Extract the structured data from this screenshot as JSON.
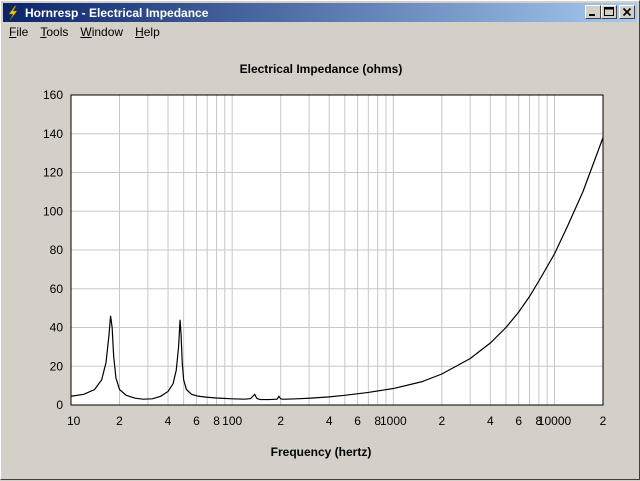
{
  "window": {
    "title": "Hornresp - Electrical Impedance",
    "icon": "lightning-bolt-icon",
    "controls": [
      "minimize-icon",
      "maximize-icon",
      "close-icon"
    ]
  },
  "menu": {
    "items": [
      {
        "hot": "F",
        "rest": "ile"
      },
      {
        "hot": "T",
        "rest": "ools"
      },
      {
        "hot": "W",
        "rest": "indow"
      },
      {
        "hot": "H",
        "rest": "elp"
      }
    ]
  },
  "chart_data": {
    "type": "line",
    "title": "Electrical Impedance (ohms)",
    "xlabel": "Frequency (hertz)",
    "ylabel": "",
    "xscale": "log",
    "xlim": [
      10,
      20000
    ],
    "ylim": [
      0,
      160
    ],
    "grid": true,
    "yticks": [
      0,
      20,
      40,
      60,
      80,
      100,
      120,
      140,
      160
    ],
    "xtick_labels": [
      {
        "value": 10,
        "label": "10"
      },
      {
        "value": 20,
        "label": "2"
      },
      {
        "value": 40,
        "label": "4"
      },
      {
        "value": 60,
        "label": "6"
      },
      {
        "value": 80,
        "label": "8"
      },
      {
        "value": 100,
        "label": "100"
      },
      {
        "value": 200,
        "label": "2"
      },
      {
        "value": 400,
        "label": "4"
      },
      {
        "value": 600,
        "label": "6"
      },
      {
        "value": 800,
        "label": "8"
      },
      {
        "value": 1000,
        "label": "1000"
      },
      {
        "value": 2000,
        "label": "2"
      },
      {
        "value": 4000,
        "label": "4"
      },
      {
        "value": 6000,
        "label": "6"
      },
      {
        "value": 8000,
        "label": "8"
      },
      {
        "value": 10000,
        "label": "10000"
      },
      {
        "value": 20000,
        "label": "2"
      }
    ],
    "series": [
      {
        "color": "#000000",
        "x": [
          10,
          12,
          14,
          15.5,
          16.5,
          17.2,
          17.6,
          18.0,
          18.4,
          19.0,
          20,
          22,
          25,
          28,
          32,
          36,
          40,
          43,
          45,
          46.5,
          47.5,
          48.2,
          49,
          50,
          52,
          56,
          62,
          70,
          80,
          100,
          120,
          130,
          138,
          142,
          146,
          150,
          170,
          190,
          195,
          200,
          205,
          215,
          250,
          300,
          400,
          500,
          700,
          1000,
          1500,
          2000,
          3000,
          4000,
          5000,
          6000,
          7000,
          8000,
          10000,
          12000,
          15000,
          20000
        ],
        "y": [
          4.5,
          5.5,
          8,
          13,
          22,
          36,
          46,
          40,
          25,
          14,
          8,
          5,
          3.5,
          3,
          3.2,
          4.5,
          7,
          11,
          18,
          30,
          44,
          36,
          22,
          13,
          8,
          5.5,
          4.5,
          4,
          3.6,
          3.2,
          3.0,
          3.3,
          5.5,
          3.5,
          3.0,
          2.8,
          2.8,
          3.0,
          4.5,
          3.2,
          3.0,
          3.0,
          3.2,
          3.5,
          4.2,
          5.0,
          6.5,
          8.5,
          12,
          16,
          24,
          32,
          40,
          48,
          56,
          64,
          78,
          92,
          110,
          138
        ]
      }
    ]
  }
}
